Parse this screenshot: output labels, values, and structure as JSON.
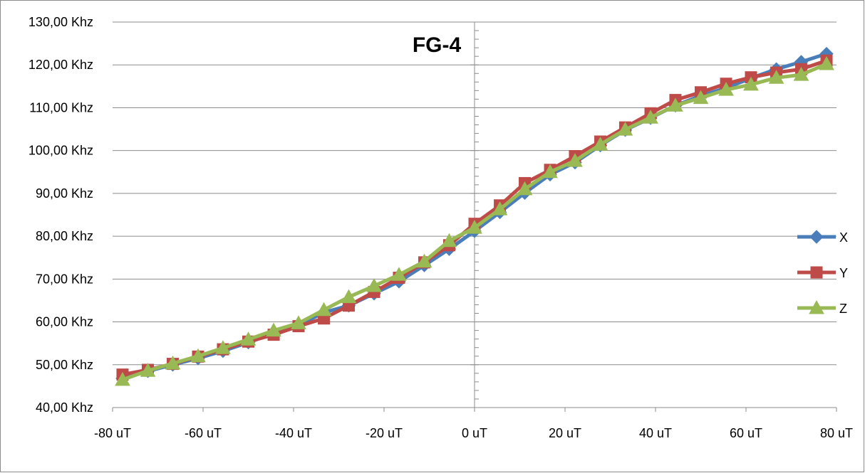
{
  "chart_data": {
    "type": "line",
    "title": "FG-4",
    "xlabel": "",
    "ylabel": "",
    "xlim": [
      -80,
      80
    ],
    "ylim": [
      40,
      130
    ],
    "x_ticks": [
      -80,
      -60,
      -40,
      -20,
      0,
      20,
      40,
      60,
      80
    ],
    "x_tick_labels": [
      "-80 uT",
      "-60 uT",
      "-40 uT",
      "-20 uT",
      "0 uT",
      "20 uT",
      "40 uT",
      "60 uT",
      "80 uT"
    ],
    "y_ticks": [
      40,
      50,
      60,
      70,
      80,
      90,
      100,
      110,
      120,
      130
    ],
    "y_tick_labels": [
      "40,00 Khz",
      "50,00 Khz",
      "60,00 Khz",
      "70,00 Khz",
      "80,00 Khz",
      "90,00 Khz",
      "100,00 Khz",
      "110,00 Khz",
      "120,00 Khz",
      "130,00 Khz"
    ],
    "grid": "horizontal",
    "legend_position": "right",
    "x": [
      -77.8,
      -72.2,
      -66.7,
      -61.1,
      -55.6,
      -50.0,
      -44.4,
      -38.9,
      -33.3,
      -27.8,
      -22.2,
      -16.7,
      -11.1,
      -5.6,
      0.0,
      5.6,
      11.1,
      16.7,
      22.2,
      27.8,
      33.3,
      38.9,
      44.4,
      50.0,
      55.6,
      61.1,
      66.7,
      72.2,
      77.8
    ],
    "series": [
      {
        "name": "X",
        "color": "#4a7ebb",
        "marker": "diamond",
        "values": [
          46.8,
          48.5,
          50.0,
          51.5,
          53.2,
          55.2,
          57.3,
          59.2,
          62.2,
          63.8,
          66.6,
          69.4,
          73.2,
          77.0,
          81.2,
          85.6,
          90.1,
          94.4,
          97.2,
          101.2,
          104.8,
          107.6,
          110.5,
          112.8,
          114.6,
          116.9,
          119.0,
          120.7,
          122.6
        ]
      },
      {
        "name": "Y",
        "color": "#be4b48",
        "marker": "square",
        "values": [
          47.7,
          48.8,
          50.2,
          51.9,
          53.6,
          55.4,
          57.0,
          59.0,
          60.8,
          63.8,
          67.0,
          70.3,
          73.9,
          77.9,
          82.9,
          87.2,
          92.4,
          95.5,
          98.7,
          102.1,
          105.4,
          108.7,
          111.8,
          113.6,
          115.6,
          117.1,
          118.2,
          119.0,
          121.0
        ]
      },
      {
        "name": "Z",
        "color": "#98b954",
        "marker": "triangle",
        "values": [
          46.5,
          48.6,
          50.3,
          52.0,
          53.9,
          55.9,
          58.0,
          59.7,
          62.8,
          65.8,
          68.4,
          71.0,
          74.1,
          78.9,
          82.0,
          86.3,
          91.0,
          95.0,
          97.6,
          101.4,
          104.9,
          107.7,
          110.5,
          112.3,
          114.2,
          115.4,
          117.0,
          117.7,
          120.2
        ]
      }
    ]
  }
}
